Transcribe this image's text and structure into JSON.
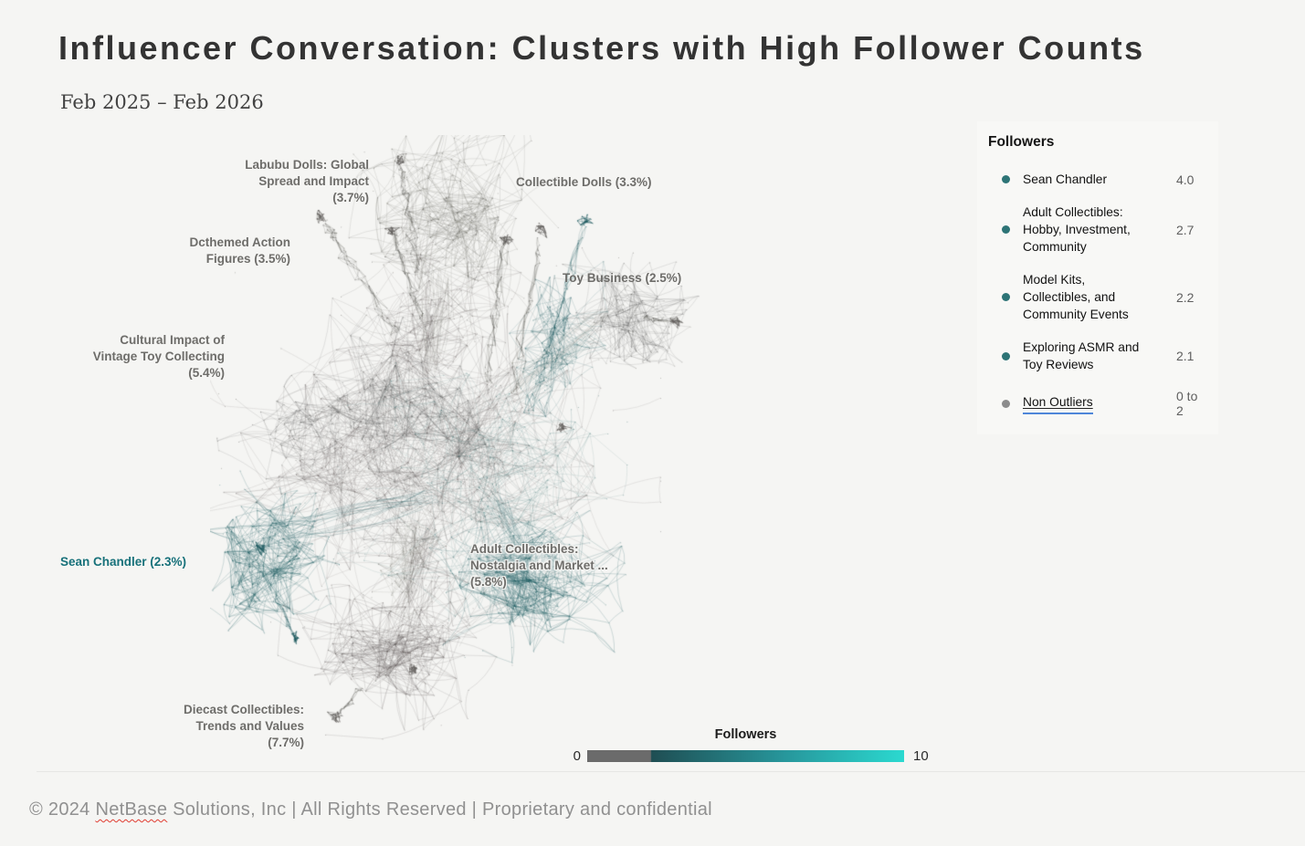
{
  "page": {
    "title": "Influencer Conversation: Clusters with High Follower Counts",
    "date_range": "Feb 2025 – Feb 2026",
    "footer_prefix": "© 2024 ",
    "footer_brand": "NetBase",
    "footer_suffix": " Solutions, Inc | All Rights Reserved | Proprietary and confidential"
  },
  "legend": {
    "title": "Followers",
    "items": [
      {
        "label": "Sean Chandler",
        "value": "4.0",
        "dot_color": "#2d7476"
      },
      {
        "label": "Adult Collectibles: Hobby, Investment, Community",
        "value": "2.7",
        "dot_color": "#2d7476"
      },
      {
        "label": "Model Kits, Collectibles, and Community Events",
        "value": "2.2",
        "dot_color": "#2d7476"
      },
      {
        "label": "Exploring ASMR and Toy Reviews",
        "value": "2.1",
        "dot_color": "#2d7476"
      },
      {
        "label": "Non Outliers",
        "value": "0 to 2",
        "dot_color": "#8c8c8c"
      }
    ]
  },
  "colorbar": {
    "title": "Followers",
    "min": "0",
    "max": "10",
    "gray_color": "#6b6b6b",
    "teal_dark": "#1f4e53",
    "teal_mid": "#27969b",
    "teal_bright": "#2bd9d0"
  },
  "chart_data": {
    "type": "network",
    "title": "Influencer Conversation: Clusters with High Follower Counts",
    "period": "Feb 2025 – Feb 2026",
    "followers_scale": {
      "min": 0,
      "max": 10,
      "non_outlier_range": "0 to 2"
    },
    "colors": {
      "edge_gray": "#5b5955",
      "edge_teal": "#1c5a5e",
      "label_gray": "#6e6d6a",
      "label_teal": "#17717a"
    },
    "clusters": [
      {
        "name": "Labubu Dolls: Global Spread and Impact",
        "share_pct": 3.7,
        "color": "gray",
        "label": "Labubu Dolls: Global\nSpread and Impact\n(3.7%)"
      },
      {
        "name": "Collectible Dolls",
        "share_pct": 3.3,
        "color": "gray",
        "label": "Collectible Dolls  (3.3%)"
      },
      {
        "name": "Dcthemed Action Figures",
        "share_pct": 3.5,
        "color": "gray",
        "label": "Dcthemed Action\nFigures (3.5%)"
      },
      {
        "name": "Toy Business",
        "share_pct": 2.5,
        "color": "gray",
        "label": "Toy Business (2.5%)"
      },
      {
        "name": "Cultural Impact of Vintage Toy Collecting",
        "share_pct": 5.4,
        "color": "gray",
        "label": "Cultural Impact of\nVintage Toy Collecting\n(5.4%)"
      },
      {
        "name": "Sean Chandler",
        "share_pct": 2.3,
        "color": "teal",
        "label": "Sean Chandler  (2.3%)"
      },
      {
        "name": "Adult Collectibles: Nostalgia and Market ...",
        "share_pct": 5.8,
        "color": "teal",
        "label": "Adult Collectibles:\nNostalgia and Market ...\n(5.8%)"
      },
      {
        "name": "Diecast Collectibles: Trends and Values",
        "share_pct": 7.7,
        "color": "gray",
        "label": "Diecast Collectibles:\nTrends and Values\n(7.7%)"
      }
    ],
    "outlier_followers": [
      {
        "name": "Sean Chandler",
        "followers": 4.0
      },
      {
        "name": "Adult Collectibles: Hobby, Investment, Community",
        "followers": 2.7
      },
      {
        "name": "Model Kits, Collectibles, and Community Events",
        "followers": 2.2
      },
      {
        "name": "Exploring ASMR and Toy Reviews",
        "followers": 2.1
      }
    ]
  }
}
